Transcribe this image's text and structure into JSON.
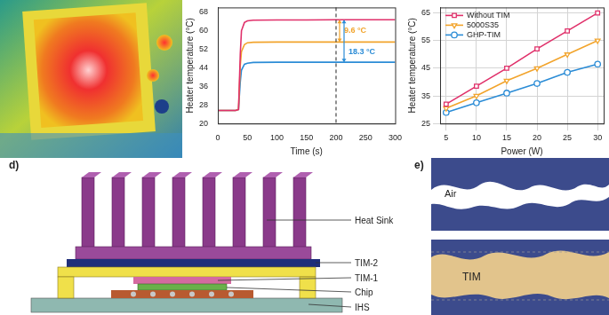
{
  "chart_data": [
    {
      "type": "line",
      "x_label": "Time (s)",
      "y_label": "Heater temperature (°C)",
      "x": [
        0,
        30,
        35,
        38,
        40,
        45,
        50,
        60,
        100,
        150,
        200,
        250,
        300
      ],
      "series": [
        {
          "color": "#e0306a",
          "values": [
            25.6,
            25.6,
            26,
            50,
            60,
            63.5,
            64.2,
            64.5,
            64.6,
            64.6,
            64.7,
            64.7,
            64.7
          ]
        },
        {
          "color": "#f2a42c",
          "values": [
            25.6,
            25.6,
            26,
            45,
            51,
            54,
            54.8,
            55,
            55.1,
            55.1,
            55.1,
            55.1,
            55.1
          ]
        },
        {
          "color": "#2b8cd6",
          "values": [
            25.6,
            25.6,
            26,
            38,
            43,
            45.5,
            46,
            46.3,
            46.4,
            46.4,
            46.4,
            46.4,
            46.4
          ]
        }
      ],
      "xlim": [
        0,
        300
      ],
      "xticks": [
        0,
        50,
        100,
        150,
        200,
        250,
        300
      ],
      "ylim": [
        20,
        70
      ],
      "yticks": [
        20,
        28,
        36,
        44,
        52,
        60,
        68
      ],
      "grid": false,
      "dashed_line_x": 200,
      "annotations": [
        {
          "text": "9.6 °C",
          "x": 200,
          "from": 64.7,
          "to": 55.1,
          "color": "#f2a42c"
        },
        {
          "text": "18.3 °C",
          "x": 200,
          "from": 64.7,
          "to": 46.4,
          "color": "#2b8cd6"
        }
      ]
    },
    {
      "type": "line",
      "x_label": "Power (W)",
      "y_label": "Heater temperature (°C)",
      "x": [
        5,
        10,
        15,
        20,
        25,
        30
      ],
      "series": [
        {
          "name": "Without TIM",
          "color": "#e0306a",
          "marker": "square",
          "values": [
            32,
            38.5,
            45,
            52,
            58.5,
            65
          ]
        },
        {
          "name": "5000S35",
          "color": "#f2a42c",
          "marker": "triangle_down",
          "values": [
            30.5,
            35,
            40.5,
            45,
            50,
            55
          ]
        },
        {
          "name": "GHP-TIM",
          "color": "#2b8cd6",
          "marker": "circle",
          "values": [
            29,
            32.5,
            36,
            39.5,
            43.5,
            46.5
          ]
        }
      ],
      "xlim": [
        4,
        31
      ],
      "xticks": [
        5,
        10,
        15,
        20,
        25,
        30
      ],
      "ylim": [
        25,
        67
      ],
      "yticks": [
        25,
        35,
        45,
        55,
        65
      ],
      "grid": true,
      "legend": "upper left"
    }
  ],
  "diagram": {
    "panel_d": {
      "label": "d)",
      "heat_sink": "Heat Sink",
      "tim2": "TIM-2",
      "tim1": "TIM-1",
      "chip": "Chip",
      "ihs": "IHS"
    },
    "panel_e": {
      "label": "e)",
      "air": "Air",
      "tim": "TIM"
    }
  }
}
